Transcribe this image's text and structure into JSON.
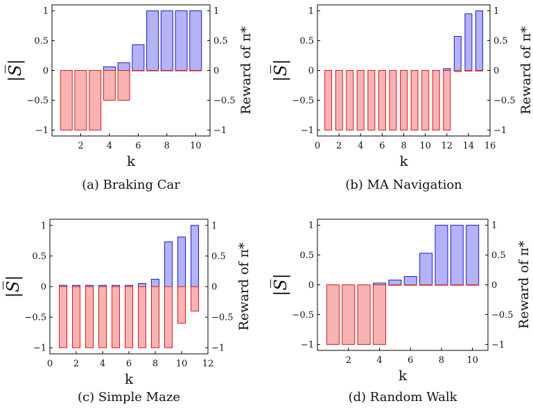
{
  "colors": {
    "positive_fill": "#b3b3f5",
    "positive_stroke": "#1a1acc",
    "negative_fill": "#f7b3b3",
    "negative_stroke": "#d81b1b"
  },
  "chart_data": [
    {
      "type": "bar",
      "caption": "(a) Braking Car",
      "xlabel": "k",
      "ylabel": "|S̅|",
      "y2label": "Reward of π*",
      "xlim": [
        0,
        11
      ],
      "ylim": [
        -1.1,
        1.1
      ],
      "xticks": [
        2,
        4,
        6,
        8,
        10
      ],
      "yticks": [
        1,
        0.5,
        0,
        -0.5,
        -1
      ],
      "ytick_labels": [
        "1",
        "0.5",
        "0",
        "−0.5",
        "−1"
      ],
      "x": [
        1,
        2,
        3,
        4,
        5,
        6,
        7,
        8,
        9,
        10
      ],
      "series": [
        {
          "values": [
            0,
            0,
            0,
            0.06,
            0.13,
            0.43,
            1,
            1,
            1,
            1
          ]
        },
        {
          "values": [
            -1,
            -1,
            -1,
            -0.5,
            -0.5,
            0,
            0,
            0,
            0,
            0
          ]
        }
      ]
    },
    {
      "type": "bar",
      "caption": "(b) MA Navigation",
      "xlabel": "k",
      "ylabel": "|S̅|",
      "y2label": "Reward of π*",
      "xlim": [
        0,
        16
      ],
      "ylim": [
        -1.1,
        1.1
      ],
      "xticks": [
        0,
        2,
        4,
        6,
        8,
        10,
        12,
        14,
        16
      ],
      "yticks": [
        1,
        0.5,
        0,
        -0.5,
        -1
      ],
      "ytick_labels": [
        "1",
        "0.5",
        "0",
        "−0.5",
        "−1"
      ],
      "x": [
        1,
        2,
        3,
        4,
        5,
        6,
        7,
        8,
        9,
        10,
        11,
        12,
        13,
        14,
        15
      ],
      "series": [
        {
          "values": [
            0,
            0,
            0,
            0,
            0,
            0,
            0,
            0,
            0,
            0,
            0,
            0.03,
            0.57,
            0.95,
            1
          ]
        },
        {
          "values": [
            -1,
            -1,
            -1,
            -1,
            -1,
            -1,
            -1,
            -1,
            -1,
            -1,
            -1,
            -1,
            -0.02,
            -0.01,
            -0.01
          ]
        }
      ]
    },
    {
      "type": "bar",
      "caption": "(c) Simple Maze",
      "xlabel": "k",
      "ylabel": "|S̅|",
      "y2label": "Reward of π*",
      "xlim": [
        0,
        12
      ],
      "ylim": [
        -1.1,
        1.1
      ],
      "xticks": [
        0,
        2,
        4,
        6,
        8,
        10,
        12
      ],
      "yticks": [
        1,
        0.5,
        0,
        -0.5,
        -1
      ],
      "ytick_labels": [
        "1",
        "0.5",
        "0",
        "−0.5",
        "−1"
      ],
      "x": [
        1,
        2,
        3,
        4,
        5,
        6,
        7,
        8,
        9,
        10,
        11
      ],
      "series": [
        {
          "values": [
            0.02,
            0.02,
            0.02,
            0.02,
            0.02,
            0.02,
            0.05,
            0.12,
            0.73,
            0.81,
            1
          ]
        },
        {
          "values": [
            -1,
            -1,
            -1,
            -1,
            -1,
            -1,
            -1,
            -1,
            -1,
            -0.6,
            -0.4
          ]
        }
      ]
    },
    {
      "type": "bar",
      "caption": "(d) Random Walk",
      "xlabel": "k",
      "ylabel": "|S̅|",
      "y2label": "Reward of π*",
      "xlim": [
        0,
        11
      ],
      "ylim": [
        -1.1,
        1.1
      ],
      "xticks": [
        2,
        4,
        6,
        8,
        10
      ],
      "yticks": [
        1,
        0.5,
        0,
        -0.5,
        -1
      ],
      "ytick_labels": [
        "1",
        "0.5",
        "0",
        "−0.5",
        "−1"
      ],
      "x": [
        1,
        2,
        3,
        4,
        5,
        6,
        7,
        8,
        9,
        10
      ],
      "series": [
        {
          "values": [
            0,
            0,
            0,
            0.03,
            0.08,
            0.14,
            0.53,
            1,
            1,
            1
          ]
        },
        {
          "values": [
            -1,
            -1,
            -1,
            -1,
            0,
            0,
            0,
            0,
            0,
            0
          ]
        }
      ]
    }
  ]
}
